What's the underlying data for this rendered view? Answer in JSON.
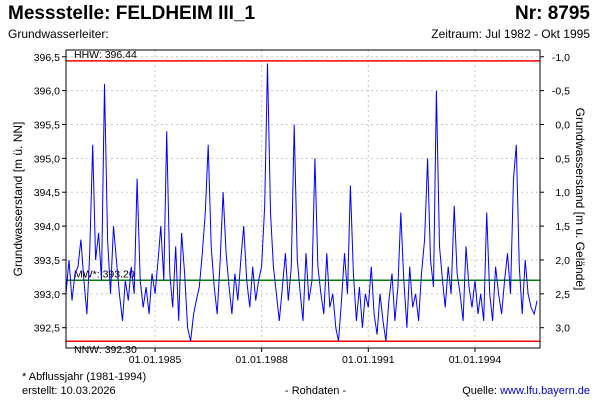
{
  "header": {
    "title": "Messstelle: FELDHEIM III_1",
    "number": "Nr: 8795",
    "aquifer": "Grundwasserleiter:",
    "period": "Zeitraum: Jul 1982 - Okt 1995"
  },
  "footer": {
    "footnote": "* Abflussjahr (1981-1994)",
    "created": "erstellt:  10.03.2026",
    "raw_data": "- Rohdaten -",
    "source_label": "Quelle:",
    "source_link": "www.lfu.bayern.de"
  },
  "colors": {
    "series": "#0000ff",
    "hhw": "#ff0000",
    "nnw": "#ff0000",
    "mw": "#008000",
    "grid": "#c8c8c8"
  },
  "chart_data": {
    "type": "line",
    "title": "",
    "xlabel": "",
    "ylabel": "Grundwasserstand [m ü. NN]",
    "ylabel_right": "Grundwasserstand [m u. Gelände]",
    "xlim": [
      "1982-07-01",
      "1995-10-31"
    ],
    "ylim": [
      392.2,
      396.6
    ],
    "y_ticks": [
      "396,5",
      "396,0",
      "395,5",
      "395,0",
      "394,5",
      "394,0",
      "393,5",
      "393,0",
      "392,5"
    ],
    "y_tick_values": [
      396.5,
      396.0,
      395.5,
      395.0,
      394.5,
      394.0,
      393.5,
      393.0,
      392.5
    ],
    "x_ticks": [
      "01.01.1985",
      "01.01.1988",
      "01.01.1991",
      "01.01.1994"
    ],
    "x_tick_dates": [
      "1985-01-01",
      "1988-01-01",
      "1991-01-01",
      "1994-01-01"
    ],
    "right_ticks": [
      "-1,0",
      "-0,5",
      "0,0",
      "0,5",
      "1,0",
      "1,5",
      "2,0",
      "2,5",
      "3,0"
    ],
    "right_tick_values": [
      -1.0,
      -0.5,
      0.0,
      0.5,
      1.0,
      1.5,
      2.0,
      2.5,
      3.0
    ],
    "right_axis_zero_elevation": 395.5,
    "grid": true,
    "reference_lines": [
      {
        "label": "HHW: 396.44",
        "value": 396.44
      },
      {
        "label": "MW*: 393.20",
        "value": 393.2
      },
      {
        "label": "NNW: 392.30",
        "value": 392.3
      }
    ],
    "series": [
      {
        "points": [
          [
            "1982-07-01",
            393.0
          ],
          [
            "1982-08-01",
            393.5
          ],
          [
            "1982-09-01",
            392.9
          ],
          [
            "1982-10-01",
            393.3
          ],
          [
            "1982-11-01",
            393.4
          ],
          [
            "1982-12-01",
            393.8
          ],
          [
            "1983-01-01",
            393.2
          ],
          [
            "1983-02-01",
            392.7
          ],
          [
            "1983-03-01",
            393.6
          ],
          [
            "1983-04-01",
            395.2
          ],
          [
            "1983-05-01",
            393.5
          ],
          [
            "1983-06-01",
            393.9
          ],
          [
            "1983-07-01",
            393.2
          ],
          [
            "1983-08-01",
            396.1
          ],
          [
            "1983-09-01",
            393.8
          ],
          [
            "1983-10-01",
            393.0
          ],
          [
            "1983-11-01",
            394.0
          ],
          [
            "1983-12-01",
            393.5
          ],
          [
            "1984-01-01",
            393.0
          ],
          [
            "1984-02-01",
            392.6
          ],
          [
            "1984-03-01",
            393.2
          ],
          [
            "1984-04-01",
            392.9
          ],
          [
            "1984-05-01",
            393.4
          ],
          [
            "1984-06-01",
            393.0
          ],
          [
            "1984-07-01",
            394.7
          ],
          [
            "1984-08-01",
            393.2
          ],
          [
            "1984-09-01",
            392.8
          ],
          [
            "1984-10-01",
            393.1
          ],
          [
            "1984-11-01",
            392.7
          ],
          [
            "1984-12-01",
            393.3
          ],
          [
            "1985-01-01",
            393.0
          ],
          [
            "1985-02-01",
            393.5
          ],
          [
            "1985-03-01",
            394.0
          ],
          [
            "1985-04-01",
            393.2
          ],
          [
            "1985-05-01",
            395.4
          ],
          [
            "1985-06-01",
            393.3
          ],
          [
            "1985-07-01",
            392.8
          ],
          [
            "1985-08-01",
            393.7
          ],
          [
            "1985-09-01",
            392.6
          ],
          [
            "1985-10-01",
            393.9
          ],
          [
            "1985-11-01",
            393.3
          ],
          [
            "1985-12-01",
            392.5
          ],
          [
            "1986-01-01",
            392.3
          ],
          [
            "1986-02-01",
            392.7
          ],
          [
            "1986-03-01",
            392.9
          ],
          [
            "1986-04-01",
            393.1
          ],
          [
            "1986-05-01",
            393.6
          ],
          [
            "1986-06-01",
            394.2
          ],
          [
            "1986-07-01",
            395.2
          ],
          [
            "1986-08-01",
            393.7
          ],
          [
            "1986-09-01",
            393.1
          ],
          [
            "1986-10-01",
            392.7
          ],
          [
            "1986-11-01",
            393.5
          ],
          [
            "1986-12-01",
            394.5
          ],
          [
            "1987-01-01",
            393.6
          ],
          [
            "1987-02-01",
            393.1
          ],
          [
            "1987-03-01",
            392.7
          ],
          [
            "1987-04-01",
            393.3
          ],
          [
            "1987-05-01",
            392.9
          ],
          [
            "1987-06-01",
            393.5
          ],
          [
            "1987-07-01",
            394.0
          ],
          [
            "1987-08-01",
            393.2
          ],
          [
            "1987-09-01",
            392.8
          ],
          [
            "1987-10-01",
            393.4
          ],
          [
            "1987-11-01",
            392.9
          ],
          [
            "1987-12-01",
            393.2
          ],
          [
            "1988-01-01",
            393.4
          ],
          [
            "1988-02-01",
            394.3
          ],
          [
            "1988-03-01",
            396.4
          ],
          [
            "1988-04-01",
            394.2
          ],
          [
            "1988-05-01",
            393.4
          ],
          [
            "1988-06-01",
            393.0
          ],
          [
            "1988-07-01",
            392.6
          ],
          [
            "1988-08-01",
            393.1
          ],
          [
            "1988-09-01",
            393.6
          ],
          [
            "1988-10-01",
            392.9
          ],
          [
            "1988-11-01",
            393.4
          ],
          [
            "1988-12-01",
            395.5
          ],
          [
            "1989-01-01",
            393.5
          ],
          [
            "1989-02-01",
            393.0
          ],
          [
            "1989-03-01",
            392.6
          ],
          [
            "1989-04-01",
            393.6
          ],
          [
            "1989-05-01",
            392.9
          ],
          [
            "1989-06-01",
            393.2
          ],
          [
            "1989-07-01",
            395.0
          ],
          [
            "1989-08-01",
            393.4
          ],
          [
            "1989-09-01",
            393.0
          ],
          [
            "1989-10-01",
            392.7
          ],
          [
            "1989-11-01",
            393.6
          ],
          [
            "1989-12-01",
            392.8
          ],
          [
            "1990-01-01",
            393.0
          ],
          [
            "1990-02-01",
            392.5
          ],
          [
            "1990-03-01",
            392.3
          ],
          [
            "1990-04-01",
            392.9
          ],
          [
            "1990-05-01",
            393.6
          ],
          [
            "1990-06-01",
            393.0
          ],
          [
            "1990-07-01",
            394.6
          ],
          [
            "1990-08-01",
            393.3
          ],
          [
            "1990-09-01",
            392.6
          ],
          [
            "1990-10-01",
            393.1
          ],
          [
            "1990-11-01",
            392.5
          ],
          [
            "1990-12-01",
            393.0
          ],
          [
            "1991-01-01",
            392.8
          ],
          [
            "1991-02-01",
            393.4
          ],
          [
            "1991-03-01",
            392.7
          ],
          [
            "1991-04-01",
            392.4
          ],
          [
            "1991-05-01",
            393.0
          ],
          [
            "1991-06-01",
            392.6
          ],
          [
            "1991-07-01",
            392.3
          ],
          [
            "1991-08-01",
            392.9
          ],
          [
            "1991-09-01",
            393.3
          ],
          [
            "1991-10-01",
            392.6
          ],
          [
            "1991-11-01",
            393.1
          ],
          [
            "1991-12-01",
            394.2
          ],
          [
            "1992-01-01",
            393.2
          ],
          [
            "1992-02-01",
            392.5
          ],
          [
            "1992-03-01",
            393.4
          ],
          [
            "1992-04-01",
            392.8
          ],
          [
            "1992-05-01",
            393.0
          ],
          [
            "1992-06-01",
            392.6
          ],
          [
            "1992-07-01",
            393.3
          ],
          [
            "1992-08-01",
            393.8
          ],
          [
            "1992-09-01",
            395.0
          ],
          [
            "1992-10-01",
            393.5
          ],
          [
            "1992-11-01",
            393.1
          ],
          [
            "1992-12-01",
            396.0
          ],
          [
            "1993-01-01",
            393.7
          ],
          [
            "1993-02-01",
            393.2
          ],
          [
            "1993-03-01",
            392.8
          ],
          [
            "1993-04-01",
            393.4
          ],
          [
            "1993-05-01",
            393.0
          ],
          [
            "1993-06-01",
            394.3
          ],
          [
            "1993-07-01",
            393.3
          ],
          [
            "1993-08-01",
            393.0
          ],
          [
            "1993-09-01",
            392.6
          ],
          [
            "1993-10-01",
            393.7
          ],
          [
            "1993-11-01",
            393.1
          ],
          [
            "1993-12-01",
            392.8
          ],
          [
            "1994-01-01",
            393.2
          ],
          [
            "1994-02-01",
            392.7
          ],
          [
            "1994-03-01",
            393.0
          ],
          [
            "1994-04-01",
            392.6
          ],
          [
            "1994-05-01",
            394.2
          ],
          [
            "1994-06-01",
            393.0
          ],
          [
            "1994-07-01",
            392.6
          ],
          [
            "1994-08-01",
            393.4
          ],
          [
            "1994-09-01",
            393.0
          ],
          [
            "1994-10-01",
            392.7
          ],
          [
            "1994-11-01",
            393.2
          ],
          [
            "1994-12-01",
            393.6
          ],
          [
            "1995-01-01",
            393.0
          ],
          [
            "1995-02-01",
            394.7
          ],
          [
            "1995-03-01",
            395.2
          ],
          [
            "1995-04-01",
            393.4
          ],
          [
            "1995-05-01",
            392.7
          ],
          [
            "1995-06-01",
            393.5
          ],
          [
            "1995-07-01",
            393.0
          ],
          [
            "1995-08-01",
            392.8
          ],
          [
            "1995-09-01",
            392.7
          ],
          [
            "1995-10-01",
            392.9
          ]
        ]
      }
    ]
  }
}
